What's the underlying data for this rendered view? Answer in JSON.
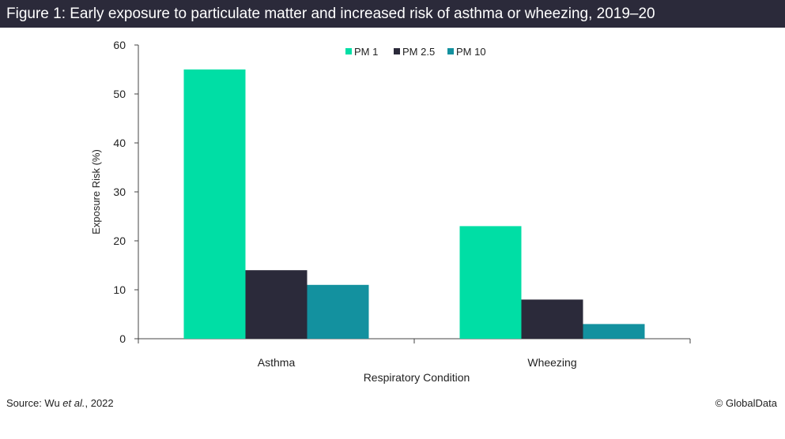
{
  "header": {
    "title": "Figure 1: Early exposure to particulate matter and increased risk of asthma or wheezing, 2019–20"
  },
  "footer": {
    "source_prefix": "Source: Wu ",
    "source_italic": "et al.",
    "source_suffix": ", 2022",
    "credit": "© GlobalData"
  },
  "chart_data": {
    "type": "bar",
    "title": "",
    "xlabel": "Respiratory Condition",
    "ylabel": "Exposure Risk (%)",
    "ylim": [
      0,
      60
    ],
    "yticks": [
      0,
      10,
      20,
      30,
      40,
      50,
      60
    ],
    "categories": [
      "Asthma",
      "Wheezing"
    ],
    "series": [
      {
        "name": "PM 1",
        "color": "#00dea5",
        "values": [
          55,
          23
        ]
      },
      {
        "name": "PM 2.5",
        "color": "#2b2a3a",
        "values": [
          14,
          8
        ]
      },
      {
        "name": "PM 10",
        "color": "#13919f",
        "values": [
          11,
          3
        ]
      }
    ],
    "legend": "top-center",
    "grid": false
  }
}
